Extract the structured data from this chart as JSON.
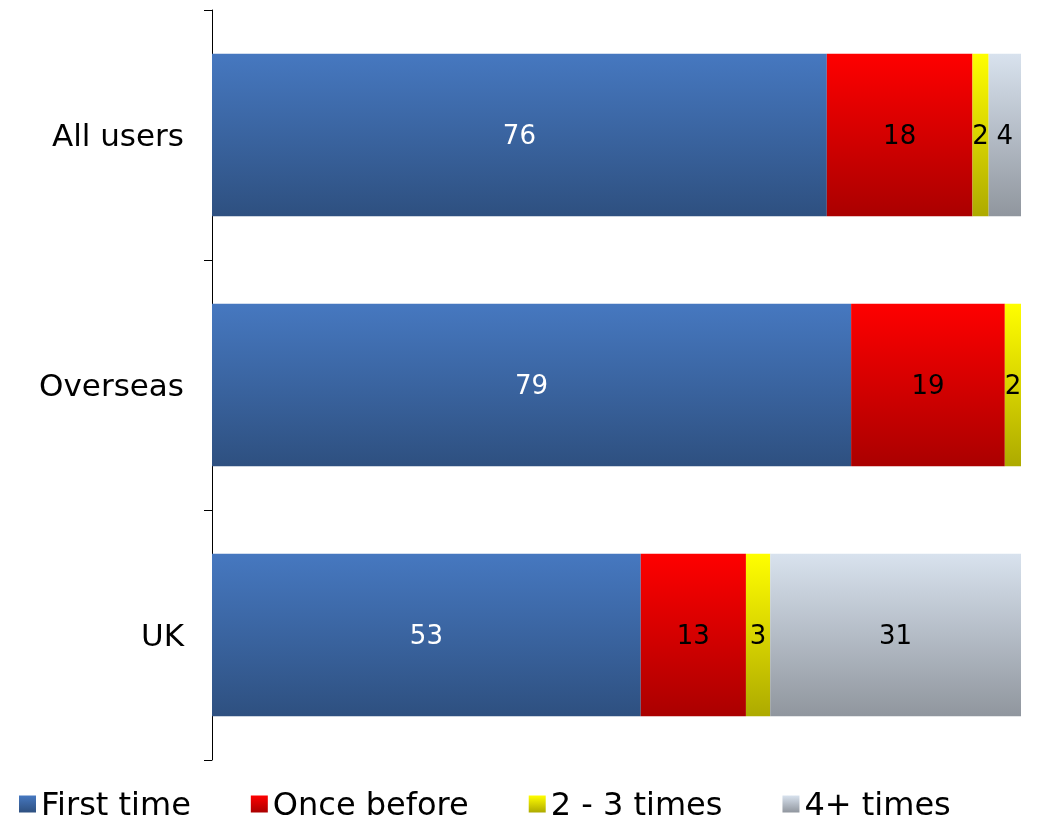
{
  "chart_data": {
    "type": "bar",
    "orientation": "horizontal",
    "stacked": true,
    "categories": [
      "All users",
      "Overseas",
      "UK"
    ],
    "series": [
      {
        "name": "First time",
        "color": "#3a64a0",
        "values": [
          76,
          79,
          53
        ]
      },
      {
        "name": "Once before",
        "color": "#d40000",
        "values": [
          18,
          19,
          13
        ]
      },
      {
        "name": "2 - 3 times",
        "color": "#d8d400",
        "values": [
          2,
          2,
          3
        ]
      },
      {
        "name": "4+ times",
        "color": "#b4bcc6",
        "values": [
          4,
          null,
          31
        ]
      }
    ],
    "xlim": [
      0,
      100
    ],
    "data_labels": true,
    "tick_labels": "y",
    "grid": false,
    "legend": "bottom"
  }
}
